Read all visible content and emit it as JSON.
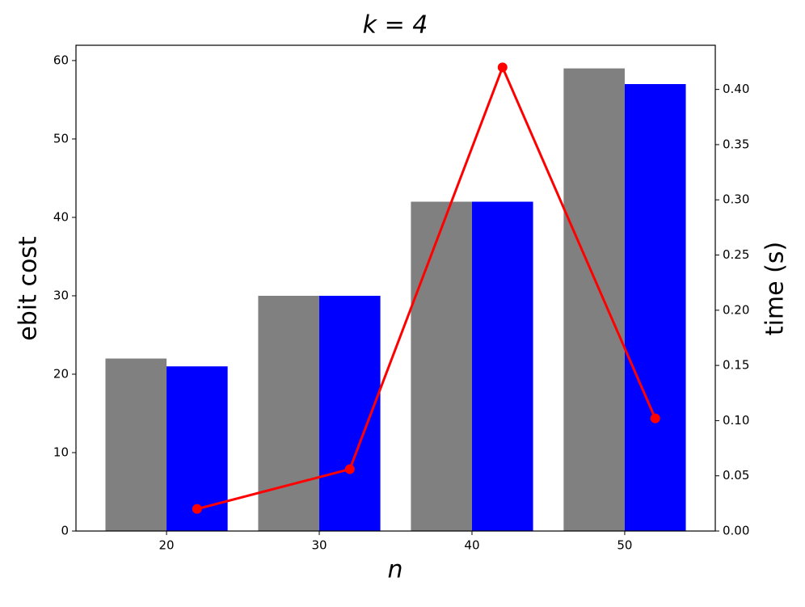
{
  "chart_data": {
    "type": "bar_line",
    "title": "k = 4",
    "xlabel": "n",
    "ylabel": "ebit cost",
    "y2label": "time (s)",
    "xlim": [
      14.07,
      55.93
    ],
    "xticks": [
      20,
      30,
      40,
      50
    ],
    "ylim": [
      0,
      61.95
    ],
    "yticks": [
      0,
      10,
      20,
      30,
      40,
      50,
      60
    ],
    "y2lim": [
      0,
      0.44
    ],
    "y2ticks": [
      {
        "value": 0,
        "label": "0.00"
      },
      {
        "value": 0.05,
        "label": "0.05"
      },
      {
        "value": 0.1,
        "label": "0.10"
      },
      {
        "value": 0.15,
        "label": "0.15"
      },
      {
        "value": 0.2,
        "label": "0.20"
      },
      {
        "value": 0.25,
        "label": "0.25"
      },
      {
        "value": 0.3,
        "label": "0.30"
      },
      {
        "value": 0.35,
        "label": "0.35"
      },
      {
        "value": 0.4,
        "label": "0.40"
      }
    ],
    "bar_width": 4,
    "series": [
      {
        "kind": "bar",
        "color": "#808080",
        "x": [
          18,
          28,
          38,
          48
        ],
        "values": [
          22,
          30,
          42,
          59
        ]
      },
      {
        "kind": "bar",
        "color": "#0000ff",
        "x": [
          22,
          32,
          42,
          52
        ],
        "values": [
          21,
          30,
          42,
          57
        ]
      },
      {
        "kind": "line",
        "axis": "y2",
        "color": "#ff0000",
        "x": [
          22,
          32,
          42,
          52
        ],
        "values": [
          0.02,
          0.056,
          0.42,
          0.102
        ]
      }
    ]
  }
}
